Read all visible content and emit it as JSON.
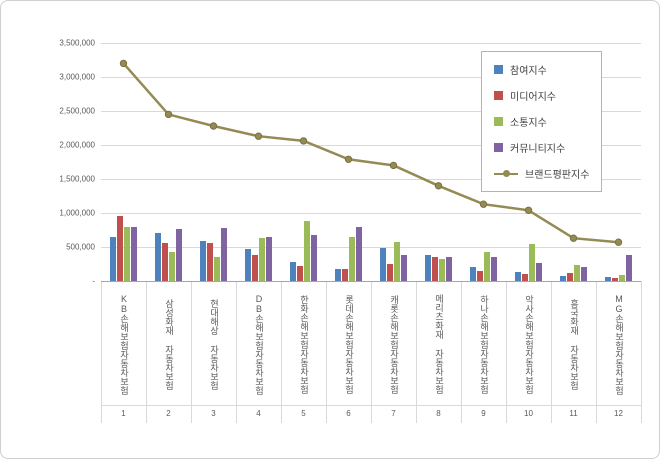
{
  "chart_data": {
    "type": "bar",
    "subtype": "grouped-bars-with-line-overlay",
    "categories": [
      "KB손해보험자동차보험",
      "삼성화재 자동차보험",
      "현대해상 자동차보험",
      "DB손해보험자동차보험",
      "한화손해보험자동차보험",
      "롯데손해보험자동차보험",
      "캐롯손해보험자동차보험",
      "메리츠화재 자동차보험",
      "하나손해보험자동차보험",
      "악사손해보험자동차보험",
      "흥국화재 자동차보험",
      "MG손해보험자동차보험"
    ],
    "category_numbers": [
      "1",
      "2",
      "3",
      "4",
      "5",
      "6",
      "7",
      "8",
      "9",
      "10",
      "11",
      "12"
    ],
    "series": [
      {
        "name": "참여지수",
        "type": "bar",
        "color": "#4F81BD",
        "values": [
          650000,
          700000,
          590000,
          470000,
          280000,
          170000,
          480000,
          380000,
          200000,
          130000,
          70000,
          55000
        ]
      },
      {
        "name": "미디어지수",
        "type": "bar",
        "color": "#C0504D",
        "values": [
          950000,
          560000,
          560000,
          380000,
          220000,
          170000,
          250000,
          350000,
          150000,
          100000,
          120000,
          45000
        ]
      },
      {
        "name": "소통지수",
        "type": "bar",
        "color": "#9BBB59",
        "values": [
          800000,
          430000,
          350000,
          630000,
          880000,
          650000,
          580000,
          320000,
          430000,
          540000,
          230000,
          85000
        ]
      },
      {
        "name": "커뮤니티지수",
        "type": "bar",
        "color": "#8064A2",
        "values": [
          800000,
          760000,
          780000,
          650000,
          680000,
          800000,
          390000,
          350000,
          350000,
          270000,
          210000,
          385000
        ]
      },
      {
        "name": "브랜드평판지수",
        "type": "line",
        "color": "#948A54",
        "marker_stroke": "#7a7142",
        "values": [
          3200000,
          2450000,
          2280000,
          2130000,
          2060000,
          1790000,
          1700000,
          1400000,
          1130000,
          1040000,
          630000,
          570000
        ]
      }
    ],
    "y_axis": {
      "min": 0,
      "max": 3500000,
      "tick_step": 500000,
      "tick_labels": [
        "-",
        "500,000",
        "1,000,000",
        "1,500,000",
        "2,000,000",
        "2,500,000",
        "3,000,000",
        "3,500,000"
      ]
    },
    "legend_position": "inside-top-right",
    "grid": "horizontal"
  }
}
